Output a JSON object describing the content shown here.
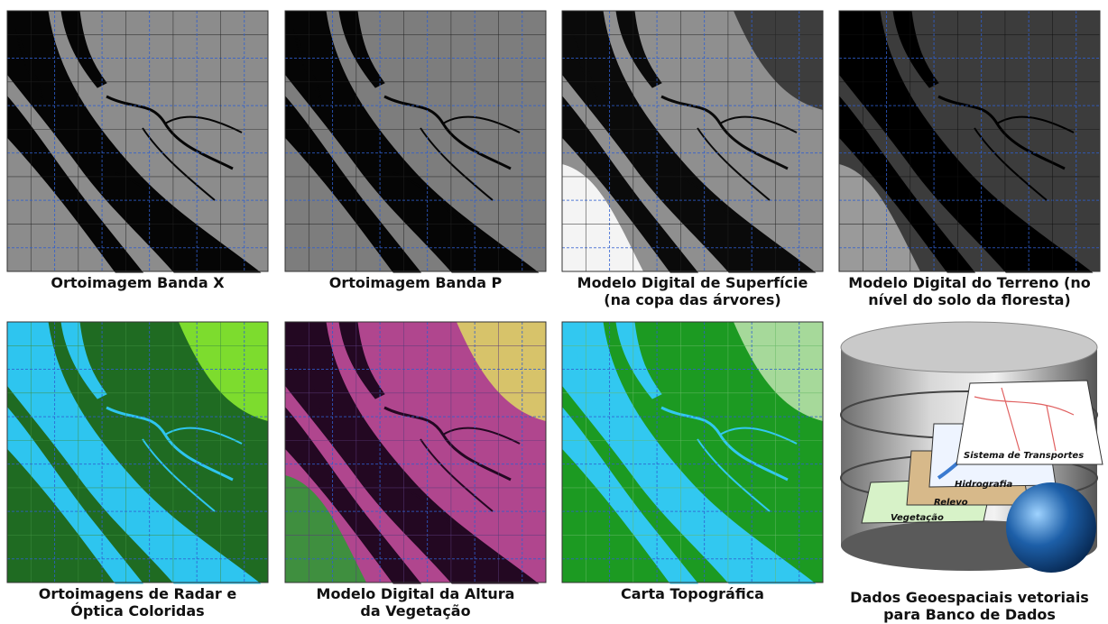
{
  "panels": [
    {
      "caption": [
        "Ortoimagem Banda X"
      ]
    },
    {
      "caption": [
        "Ortoimagem Banda P"
      ]
    },
    {
      "caption": [
        "Modelo Digital de Superfície",
        "(na copa das árvores)"
      ]
    },
    {
      "caption": [
        "Modelo Digital do Terreno (no",
        "nível do solo da floresta)"
      ]
    },
    {
      "caption": [
        "Ortoimagens de Radar e",
        "Óptica Coloridas"
      ]
    },
    {
      "caption": [
        "Modelo Digital da Altura",
        "da Vegetação"
      ]
    },
    {
      "caption": [
        "Carta Topográfica"
      ]
    },
    {
      "caption": [
        "Dados Geoespaciais vetoriais",
        "para Banco de Dados"
      ]
    }
  ],
  "database_layers": [
    "Sistema de Transportes",
    "Hidrografia",
    "Relevo",
    "Vegetação"
  ]
}
